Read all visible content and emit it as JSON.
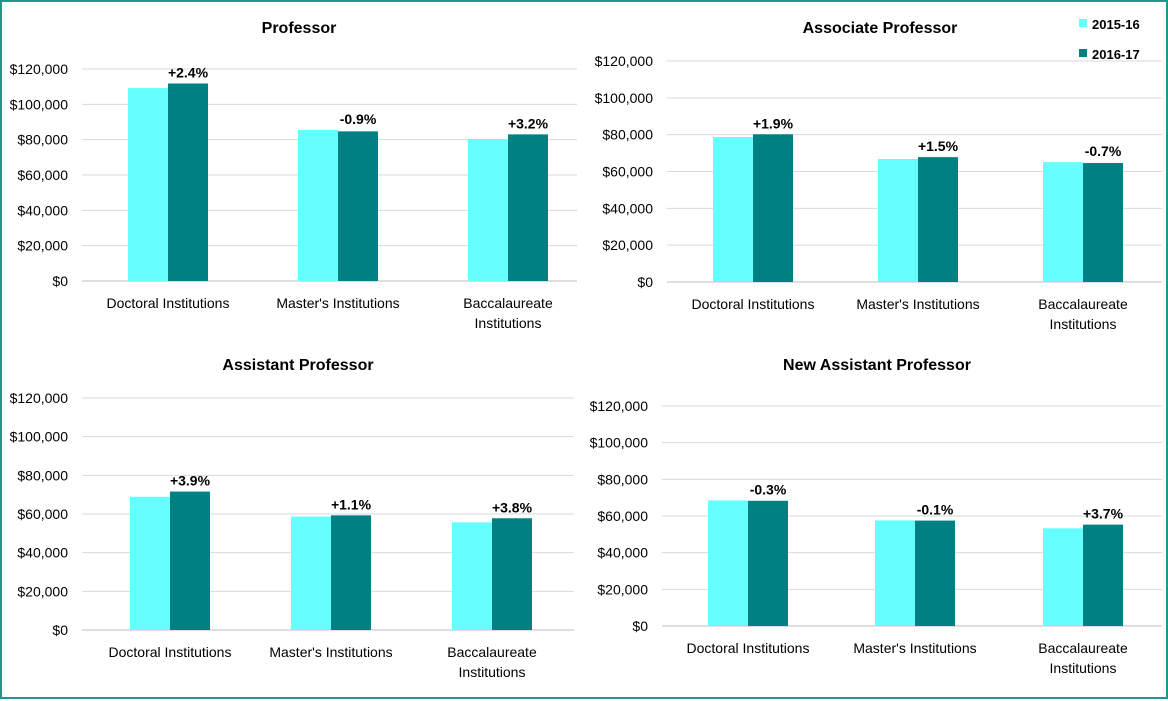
{
  "colors": {
    "2015-16": "#66FFFF",
    "2016-17": "#008080",
    "border": "#1a9a8a"
  },
  "legend": [
    "2015-16",
    "2016-17"
  ],
  "legend_position": "top-right",
  "chart_data": [
    {
      "type": "bar",
      "title": "Professor",
      "categories": [
        "Doctoral Institutions",
        "Master's Institutions",
        "Baccalaureate Institutions"
      ],
      "series": [
        {
          "name": "2015-16",
          "values": [
            109200,
            85500,
            80400
          ]
        },
        {
          "name": "2016-17",
          "values": [
            111800,
            84700,
            83000
          ]
        }
      ],
      "data_labels": [
        "+2.4%",
        "-0.9%",
        "+3.2%"
      ],
      "ylim": [
        0,
        120000
      ],
      "yticks": [
        "$0",
        "$20,000",
        "$40,000",
        "$60,000",
        "$80,000",
        "$100,000",
        "$120,000"
      ],
      "grid": true
    },
    {
      "type": "bar",
      "title": "Associate Professor",
      "categories": [
        "Doctoral Institutions",
        "Master's Institutions",
        "Baccalaureate Institutions"
      ],
      "series": [
        {
          "name": "2015-16",
          "values": [
            78700,
            66800,
            65100
          ]
        },
        {
          "name": "2016-17",
          "values": [
            80200,
            67800,
            64600
          ]
        }
      ],
      "data_labels": [
        "+1.9%",
        "+1.5%",
        "-0.7%"
      ],
      "ylim": [
        0,
        120000
      ],
      "yticks": [
        "$0",
        "$20,000",
        "$40,000",
        "$60,000",
        "$80,000",
        "$100,000",
        "$120,000"
      ],
      "grid": true
    },
    {
      "type": "bar",
      "title": "Assistant Professor",
      "categories": [
        "Doctoral Institutions",
        "Master's Institutions",
        "Baccalaureate Institutions"
      ],
      "series": [
        {
          "name": "2015-16",
          "values": [
            68900,
            58700,
            55700
          ]
        },
        {
          "name": "2016-17",
          "values": [
            71600,
            59300,
            57800
          ]
        }
      ],
      "data_labels": [
        "+3.9%",
        "+1.1%",
        "+3.8%"
      ],
      "ylim": [
        0,
        120000
      ],
      "yticks": [
        "$0",
        "$20,000",
        "$40,000",
        "$60,000",
        "$80,000",
        "$100,000",
        "$120,000"
      ],
      "grid": true
    },
    {
      "type": "bar",
      "title": "New Assistant Professor",
      "categories": [
        "Doctoral Institutions",
        "Master's Institutions",
        "Baccalaureate Institutions"
      ],
      "series": [
        {
          "name": "2015-16",
          "values": [
            68500,
            57600,
            53300
          ]
        },
        {
          "name": "2016-17",
          "values": [
            68300,
            57500,
            55300
          ]
        }
      ],
      "data_labels": [
        "-0.3%",
        "-0.1%",
        "+3.7%"
      ],
      "ylim": [
        0,
        120000
      ],
      "yticks": [
        "$0",
        "$20,000",
        "$40,000",
        "$60,000",
        "$80,000",
        "$100,000",
        "$120,000"
      ],
      "grid": true
    }
  ]
}
